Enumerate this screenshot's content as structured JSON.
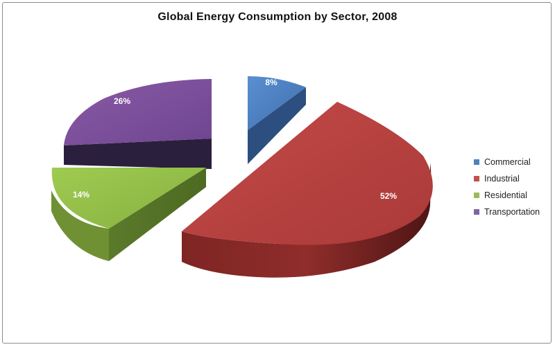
{
  "chart_data": {
    "type": "pie",
    "title": "Global Energy Consumption  by Sector, 2008",
    "categories": [
      "Commercial",
      "Industrial",
      "Residential",
      "Transportation"
    ],
    "values": [
      8,
      52,
      14,
      26
    ],
    "labels": [
      "8%",
      "52%",
      "14%",
      "26%"
    ],
    "colors": [
      "#4f81bd",
      "#c0504d",
      "#9bbb59",
      "#8064a2"
    ],
    "exploded": true,
    "three_d": true,
    "legend_position": "right"
  }
}
